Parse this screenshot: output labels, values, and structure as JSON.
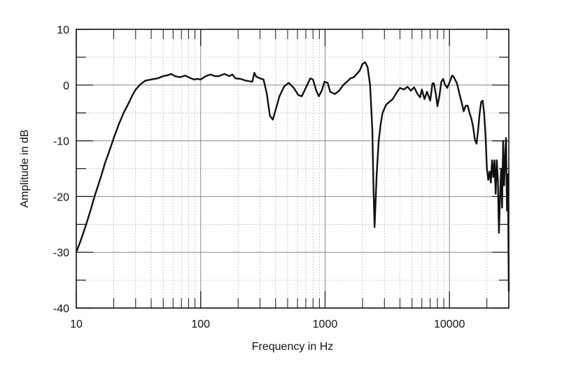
{
  "chart_data": {
    "type": "line",
    "title": "",
    "xlabel": "Frequency in Hz",
    "ylabel": "Amplitude in dB",
    "x_scale": "log",
    "xlim": [
      10,
      30000
    ],
    "ylim": [
      -40,
      10
    ],
    "grid": true,
    "x_tick_labels": [
      "10",
      "100",
      "1000",
      "10000"
    ],
    "x_tick_values": [
      10,
      100,
      1000,
      10000
    ],
    "y_tick_labels": [
      "10",
      "0",
      "-10",
      "-20",
      "-30",
      "-40"
    ],
    "y_tick_values": [
      10,
      0,
      -10,
      -20,
      -30,
      -40
    ],
    "line_color": "#111111",
    "series": [
      {
        "points": [
          [
            10,
            -30
          ],
          [
            11,
            -27.5
          ],
          [
            12,
            -25
          ],
          [
            13,
            -22.5
          ],
          [
            14,
            -20
          ],
          [
            15,
            -18
          ],
          [
            16,
            -16
          ],
          [
            17,
            -14
          ],
          [
            18,
            -12.5
          ],
          [
            19,
            -11
          ],
          [
            20,
            -9.5
          ],
          [
            22,
            -7
          ],
          [
            24,
            -5
          ],
          [
            26,
            -3.5
          ],
          [
            28,
            -2
          ],
          [
            30,
            -0.8
          ],
          [
            33,
            0.2
          ],
          [
            36,
            0.8
          ],
          [
            40,
            1.0
          ],
          [
            45,
            1.2
          ],
          [
            50,
            1.6
          ],
          [
            55,
            1.8
          ],
          [
            58,
            2.0
          ],
          [
            62,
            1.6
          ],
          [
            68,
            1.4
          ],
          [
            75,
            1.7
          ],
          [
            80,
            1.4
          ],
          [
            88,
            1.0
          ],
          [
            95,
            1.1
          ],
          [
            100,
            1.0
          ],
          [
            110,
            1.6
          ],
          [
            120,
            1.9
          ],
          [
            130,
            1.6
          ],
          [
            140,
            1.6
          ],
          [
            155,
            2.0
          ],
          [
            170,
            1.6
          ],
          [
            180,
            1.9
          ],
          [
            190,
            1.2
          ],
          [
            210,
            1.1
          ],
          [
            230,
            0.8
          ],
          [
            260,
            0.6
          ],
          [
            270,
            2.2
          ],
          [
            280,
            1.5
          ],
          [
            300,
            1.2
          ],
          [
            320,
            1.0
          ],
          [
            340,
            -1.5
          ],
          [
            360,
            -5.5
          ],
          [
            380,
            -6.2
          ],
          [
            400,
            -4.5
          ],
          [
            430,
            -2
          ],
          [
            470,
            -0.2
          ],
          [
            510,
            0.4
          ],
          [
            560,
            -0.5
          ],
          [
            610,
            -1.8
          ],
          [
            650,
            -2.0
          ],
          [
            700,
            -0.5
          ],
          [
            760,
            1.2
          ],
          [
            800,
            1.0
          ],
          [
            850,
            -1.0
          ],
          [
            890,
            -2.0
          ],
          [
            940,
            -1.0
          ],
          [
            990,
            0.6
          ],
          [
            1050,
            0.4
          ],
          [
            1100,
            -1.2
          ],
          [
            1200,
            -1.6
          ],
          [
            1300,
            -1.0
          ],
          [
            1400,
            0.0
          ],
          [
            1500,
            0.6
          ],
          [
            1600,
            1.2
          ],
          [
            1700,
            1.4
          ],
          [
            1800,
            2.0
          ],
          [
            1900,
            2.6
          ],
          [
            2000,
            3.8
          ],
          [
            2100,
            4.1
          ],
          [
            2200,
            3.2
          ],
          [
            2300,
            0
          ],
          [
            2400,
            -8
          ],
          [
            2450,
            -18
          ],
          [
            2500,
            -25.5
          ],
          [
            2600,
            -16
          ],
          [
            2700,
            -10
          ],
          [
            2800,
            -7
          ],
          [
            2900,
            -5
          ],
          [
            3100,
            -3.5
          ],
          [
            3300,
            -3.0
          ],
          [
            3500,
            -2.5
          ],
          [
            3800,
            -1.2
          ],
          [
            4000,
            -0.5
          ],
          [
            4300,
            -0.8
          ],
          [
            4600,
            -0.3
          ],
          [
            4900,
            -1.0
          ],
          [
            5200,
            -0.4
          ],
          [
            5500,
            -1.5
          ],
          [
            5800,
            -2.2
          ],
          [
            6000,
            -0.8
          ],
          [
            6300,
            -2.5
          ],
          [
            6600,
            -1.2
          ],
          [
            7000,
            -2.8
          ],
          [
            7300,
            0.3
          ],
          [
            7500,
            0.3
          ],
          [
            7800,
            -1.8
          ],
          [
            8000,
            -3.8
          ],
          [
            8300,
            -2.0
          ],
          [
            8600,
            0.6
          ],
          [
            8900,
            1.1
          ],
          [
            9200,
            0.1
          ],
          [
            9600,
            -0.5
          ],
          [
            10100,
            0.7
          ],
          [
            10500,
            1.7
          ],
          [
            10800,
            1.5
          ],
          [
            11500,
            0.3
          ],
          [
            12000,
            -1.5
          ],
          [
            12500,
            -3.0
          ],
          [
            13000,
            -4.7
          ],
          [
            13500,
            -3.7
          ],
          [
            14000,
            -3.7
          ],
          [
            14500,
            -5.0
          ],
          [
            15000,
            -6.0
          ],
          [
            15500,
            -7.5
          ],
          [
            16000,
            -9.8
          ],
          [
            16500,
            -10.5
          ],
          [
            17000,
            -8
          ],
          [
            17500,
            -5
          ],
          [
            18000,
            -3.0
          ],
          [
            18500,
            -2.8
          ],
          [
            19000,
            -5
          ],
          [
            19500,
            -9
          ],
          [
            20000,
            -15
          ],
          [
            20500,
            -17
          ],
          [
            21000,
            -15.5
          ],
          [
            21500,
            -17.5
          ],
          [
            22000,
            -13.5
          ],
          [
            22500,
            -16.5
          ],
          [
            23000,
            -13.5
          ],
          [
            23500,
            -19.5
          ],
          [
            24000,
            -13.5
          ],
          [
            24500,
            -17
          ],
          [
            25000,
            -26.5
          ],
          [
            25500,
            -20
          ],
          [
            26000,
            -15
          ],
          [
            26500,
            -22
          ],
          [
            27000,
            -10
          ],
          [
            27500,
            -18
          ],
          [
            28000,
            -13
          ],
          [
            28500,
            -9.5
          ],
          [
            29000,
            -22.5
          ],
          [
            29500,
            -16
          ],
          [
            30000,
            -37
          ]
        ]
      }
    ]
  }
}
